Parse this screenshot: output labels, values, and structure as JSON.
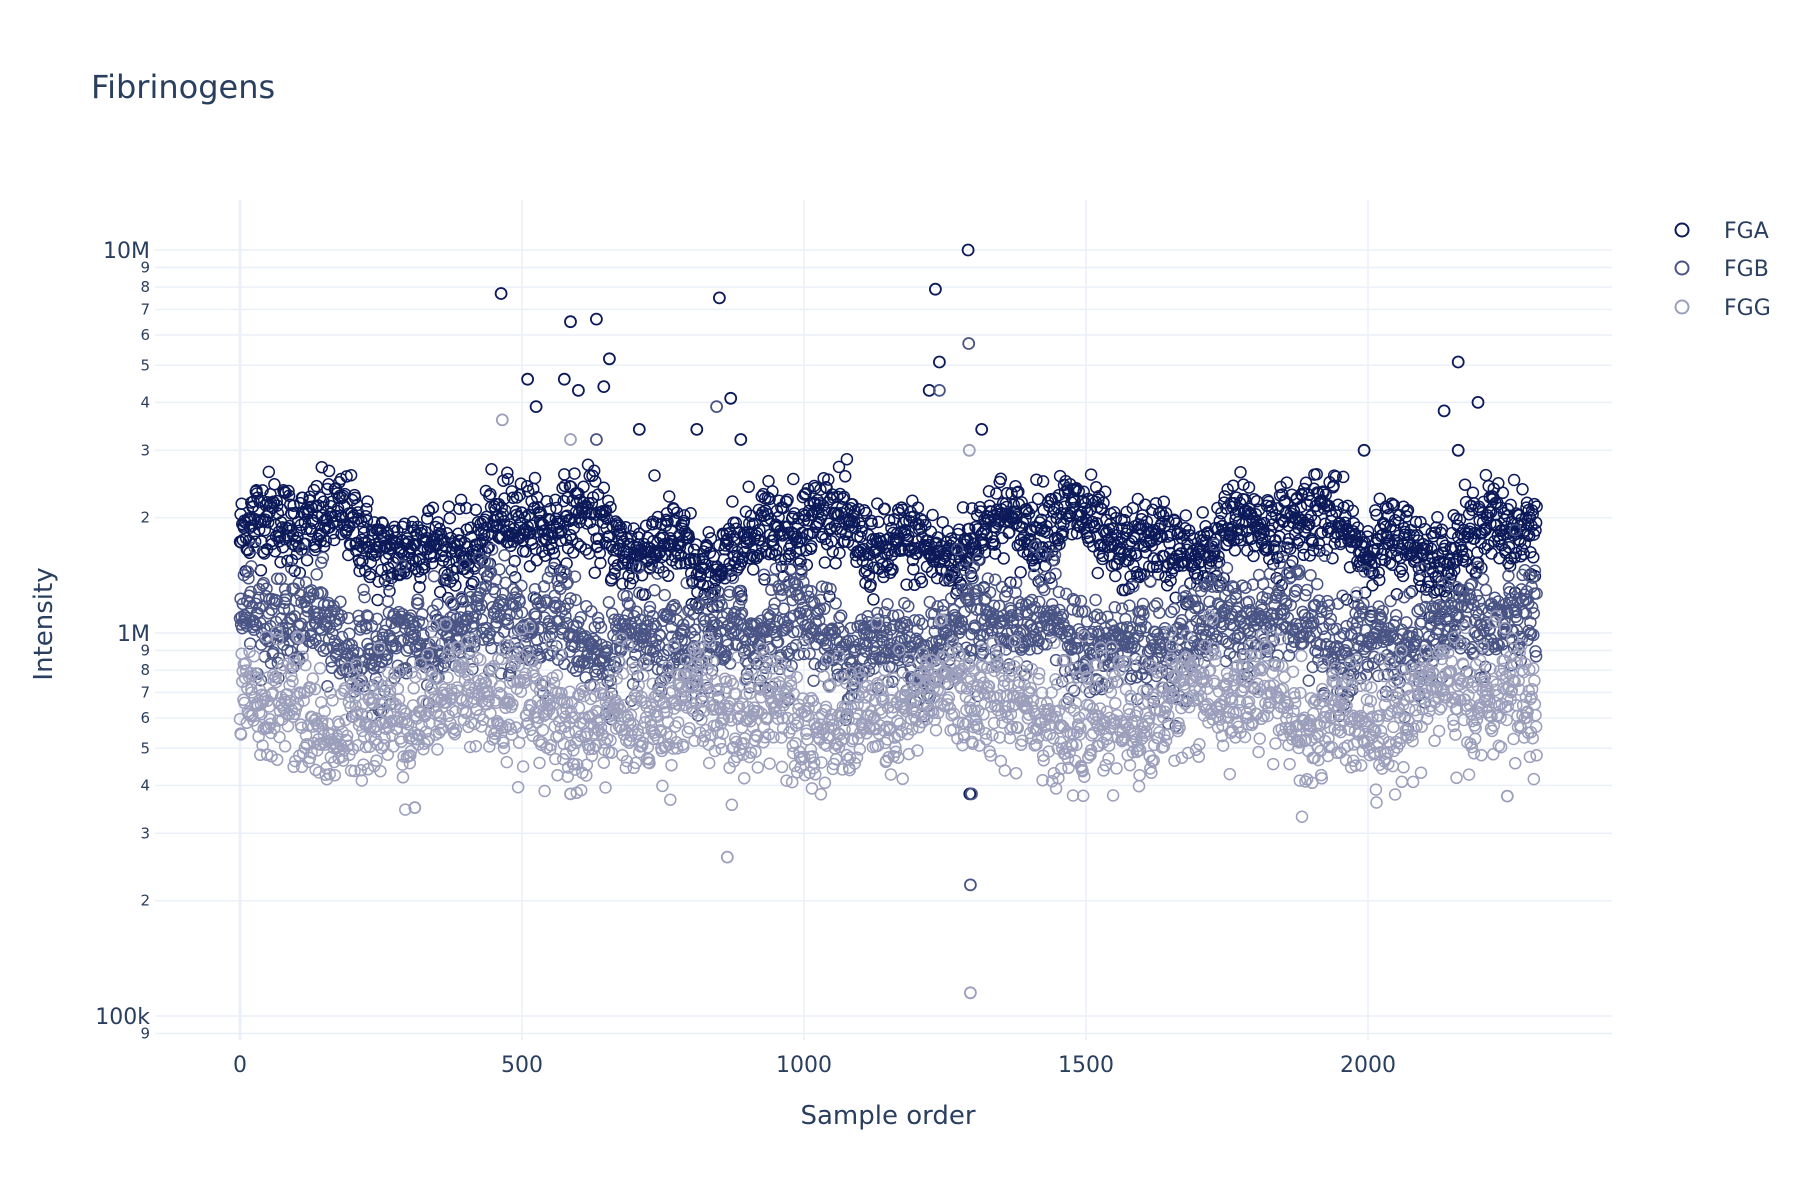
{
  "chart_data": {
    "type": "scatter",
    "title": "Fibrinogens",
    "xlabel": "Sample order",
    "ylabel": "Intensity",
    "x_scale": "linear",
    "y_scale": "log",
    "xlim": [
      -150,
      2450
    ],
    "ylim": [
      85000,
      14000000
    ],
    "x_ticks": [
      0,
      500,
      1000,
      1500,
      2000
    ],
    "x_tick_labels": [
      "0",
      "500",
      "1000",
      "1500",
      "2000"
    ],
    "y_major_ticks": [
      100000,
      1000000,
      10000000
    ],
    "y_major_tick_labels": [
      "100k",
      "1M",
      "10M"
    ],
    "y_minor_tick_labels": [
      "2",
      "3",
      "4",
      "5",
      "6",
      "7",
      "8",
      "9"
    ],
    "grid": true,
    "legend_position": "top-right",
    "marker": "open-circle",
    "n_samples": 2300,
    "series": [
      {
        "name": "FGA",
        "color": "#0d1a5a",
        "typical_median": 1800000,
        "outliers": [
          {
            "x": 463,
            "y": 7700000
          },
          {
            "x": 850,
            "y": 7500000
          },
          {
            "x": 1291,
            "y": 10000000
          },
          {
            "x": 1233,
            "y": 7900000
          },
          {
            "x": 632,
            "y": 6600000
          },
          {
            "x": 586,
            "y": 6500000
          },
          {
            "x": 655,
            "y": 5200000
          },
          {
            "x": 1240,
            "y": 5100000
          },
          {
            "x": 2160,
            "y": 5100000
          },
          {
            "x": 510,
            "y": 4600000
          },
          {
            "x": 575,
            "y": 4600000
          },
          {
            "x": 1222,
            "y": 4300000
          },
          {
            "x": 600,
            "y": 4300000
          },
          {
            "x": 645,
            "y": 4400000
          },
          {
            "x": 870,
            "y": 4100000
          },
          {
            "x": 2195,
            "y": 4000000
          },
          {
            "x": 525,
            "y": 3900000
          },
          {
            "x": 2135,
            "y": 3800000
          },
          {
            "x": 1315,
            "y": 3400000
          },
          {
            "x": 810,
            "y": 3400000
          },
          {
            "x": 708,
            "y": 3400000
          },
          {
            "x": 2160,
            "y": 3000000
          },
          {
            "x": 1993,
            "y": 3000000
          },
          {
            "x": 888,
            "y": 3200000
          },
          {
            "x": 1294,
            "y": 380000
          }
        ]
      },
      {
        "name": "FGB",
        "color": "#4a5585",
        "typical_median": 1000000,
        "outliers": [
          {
            "x": 1292,
            "y": 5700000
          },
          {
            "x": 1240,
            "y": 4300000
          },
          {
            "x": 845,
            "y": 3900000
          },
          {
            "x": 632,
            "y": 3200000
          },
          {
            "x": 1295,
            "y": 220000
          },
          {
            "x": 1297,
            "y": 380000
          }
        ]
      },
      {
        "name": "FGG",
        "color": "#9b9fbb",
        "typical_median": 630000,
        "outliers": [
          {
            "x": 1293,
            "y": 3000000
          },
          {
            "x": 465,
            "y": 3600000
          },
          {
            "x": 586,
            "y": 3200000
          },
          {
            "x": 864,
            "y": 260000
          },
          {
            "x": 1295,
            "y": 115000
          },
          {
            "x": 310,
            "y": 350000
          },
          {
            "x": 2247,
            "y": 375000
          },
          {
            "x": 586,
            "y": 380000
          }
        ]
      }
    ]
  }
}
